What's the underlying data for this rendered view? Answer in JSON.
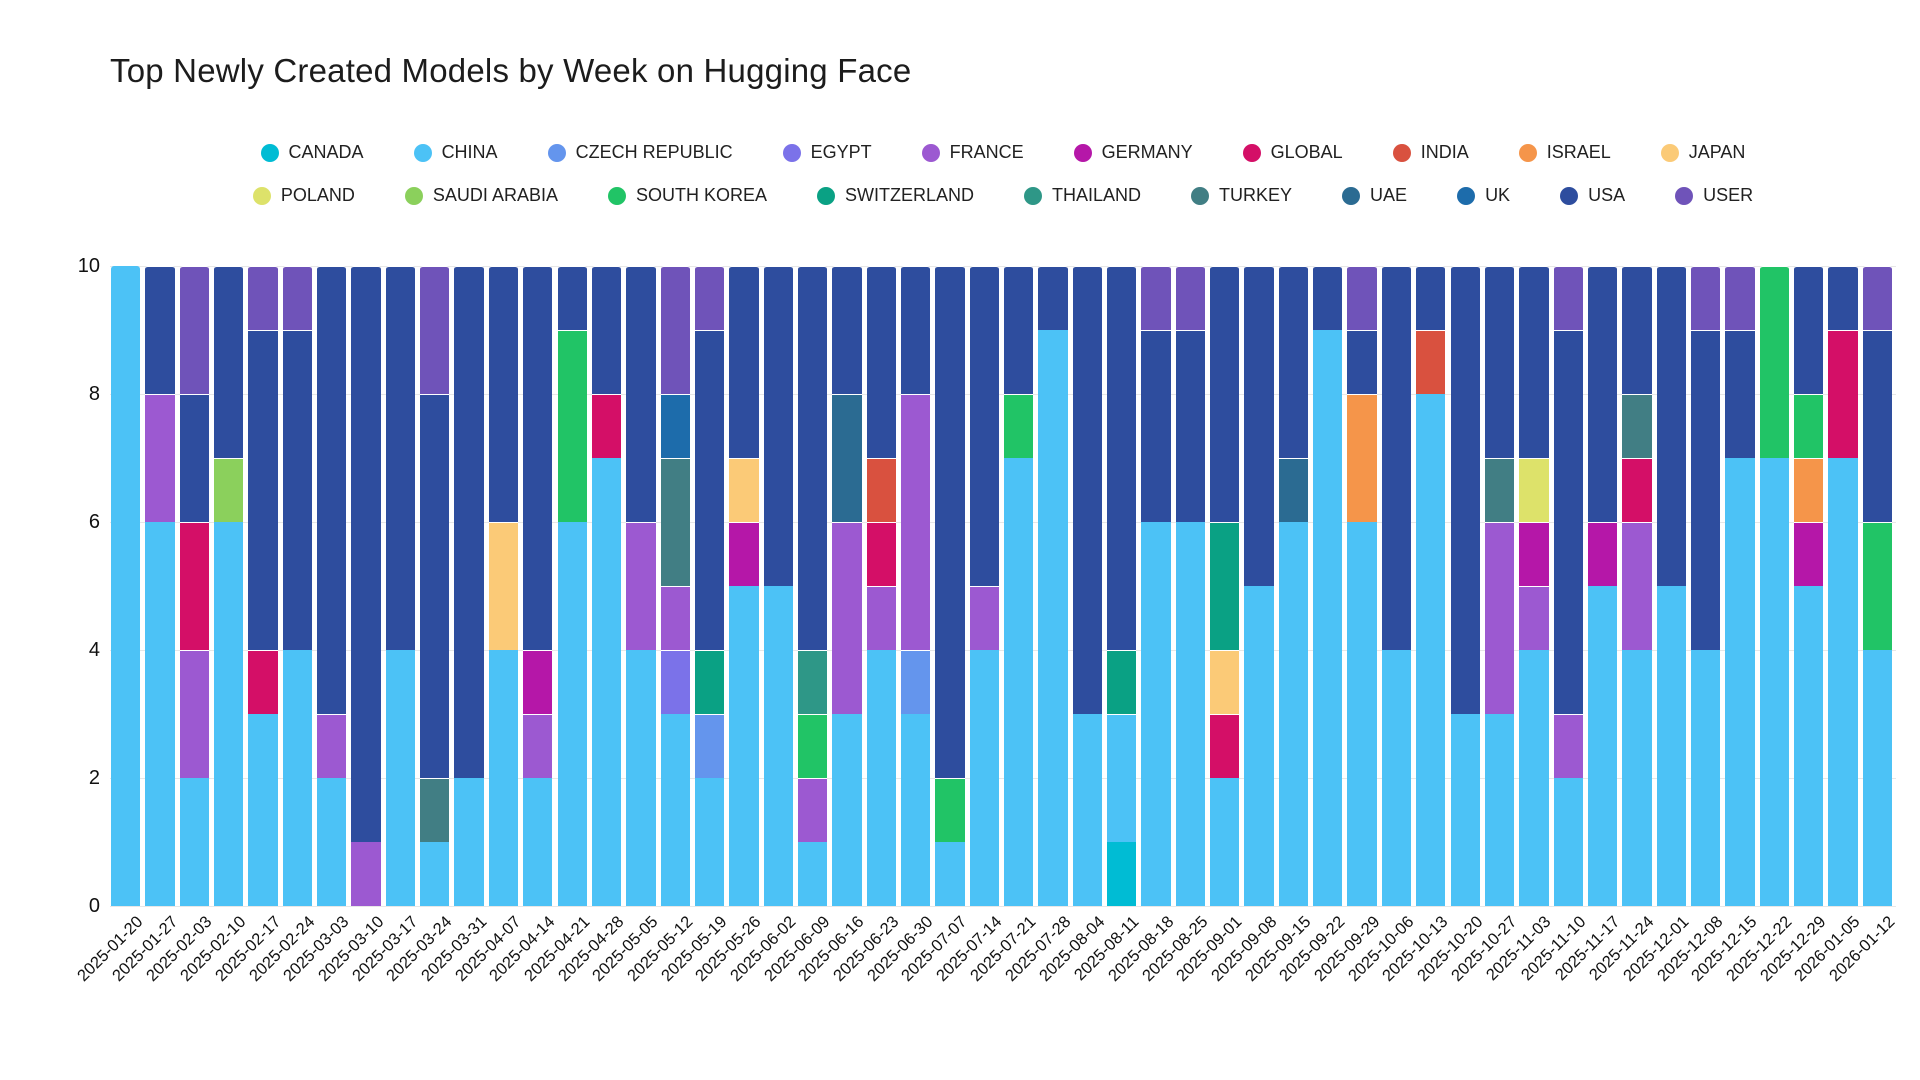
{
  "title": "Top Newly Created Models by Week on Hugging Face",
  "y_axis": {
    "ticks": [
      0,
      2,
      4,
      6,
      8,
      10
    ],
    "max": 10
  },
  "legend": {
    "row1": [
      "CANADA",
      "CHINA",
      "CZECH REPUBLIC",
      "EGYPT",
      "FRANCE",
      "GERMANY",
      "GLOBAL",
      "INDIA",
      "ISRAEL",
      "JAPAN"
    ],
    "row2": [
      "POLAND",
      "SAUDI ARABIA",
      "SOUTH KOREA",
      "SWITZERLAND",
      "THAILAND",
      "TURKEY",
      "UAE",
      "UK",
      "USA",
      "USER"
    ]
  },
  "colors": {
    "CANADA": "#00bcd4",
    "CHINA": "#4cc2f6",
    "CZECH REPUBLIC": "#6495ed",
    "EGYPT": "#7b72e9",
    "FRANCE": "#9c59d1",
    "GERMANY": "#b517a8",
    "GLOBAL": "#d40f67",
    "INDIA": "#d9513f",
    "ISRAEL": "#f5954a",
    "JAPAN": "#fbca77",
    "POLAND": "#dde26a",
    "SAUDI ARABIA": "#8bd05c",
    "SOUTH KOREA": "#21c466",
    "SWITZERLAND": "#0aa184",
    "THAILAND": "#2e9787",
    "TURKEY": "#417e84",
    "UAE": "#2b6b92",
    "UK": "#1d6cab",
    "USA": "#2e4d9e",
    "USER": "#6f53b9"
  },
  "chart_data": {
    "type": "bar",
    "subtype": "stacked-vertical",
    "title": "Top Newly Created Models by Week on Hugging Face",
    "xlabel": "",
    "ylabel": "",
    "ylim": [
      0,
      10
    ],
    "grid": "horizontal-faint",
    "legend_position": "top-center-two-rows",
    "stack_order_bottom_to_top": "alphabetical",
    "categories": [
      "2025-01-20",
      "2025-01-27",
      "2025-02-03",
      "2025-02-10",
      "2025-02-17",
      "2025-02-24",
      "2025-03-03",
      "2025-03-10",
      "2025-03-17",
      "2025-03-24",
      "2025-03-31",
      "2025-04-07",
      "2025-04-14",
      "2025-04-21",
      "2025-04-28",
      "2025-05-05",
      "2025-05-12",
      "2025-05-19",
      "2025-05-26",
      "2025-06-02",
      "2025-06-09",
      "2025-06-16",
      "2025-06-23",
      "2025-06-30",
      "2025-07-07",
      "2025-07-14",
      "2025-07-21",
      "2025-07-28",
      "2025-08-04",
      "2025-08-11",
      "2025-08-18",
      "2025-08-25",
      "2025-09-01",
      "2025-09-08",
      "2025-09-15",
      "2025-09-22",
      "2025-09-29",
      "2025-10-06",
      "2025-10-13",
      "2025-10-20",
      "2025-10-27",
      "2025-11-03",
      "2025-11-10",
      "2025-11-17",
      "2025-11-24",
      "2025-12-01",
      "2025-12-08",
      "2025-12-15",
      "2025-12-22",
      "2025-12-29",
      "2026-01-05",
      "2026-01-12"
    ],
    "bars": [
      {
        "week": "2025-01-20",
        "segments": [
          [
            "CHINA",
            10
          ]
        ]
      },
      {
        "week": "2025-01-27",
        "segments": [
          [
            "CHINA",
            6
          ],
          [
            "FRANCE",
            2
          ],
          [
            "USA",
            2
          ]
        ]
      },
      {
        "week": "2025-02-03",
        "segments": [
          [
            "CHINA",
            2
          ],
          [
            "FRANCE",
            2
          ],
          [
            "GLOBAL",
            2
          ],
          [
            "USA",
            2
          ],
          [
            "USER",
            2
          ]
        ]
      },
      {
        "week": "2025-02-10",
        "segments": [
          [
            "CHINA",
            6
          ],
          [
            "SAUDI ARABIA",
            1
          ],
          [
            "USA",
            3
          ]
        ]
      },
      {
        "week": "2025-02-17",
        "segments": [
          [
            "CHINA",
            3
          ],
          [
            "GLOBAL",
            1
          ],
          [
            "USA",
            5
          ],
          [
            "USER",
            1
          ]
        ]
      },
      {
        "week": "2025-02-24",
        "segments": [
          [
            "CHINA",
            4
          ],
          [
            "USA",
            5
          ],
          [
            "USER",
            1
          ]
        ]
      },
      {
        "week": "2025-03-03",
        "segments": [
          [
            "CHINA",
            2
          ],
          [
            "FRANCE",
            1
          ],
          [
            "USA",
            7
          ]
        ]
      },
      {
        "week": "2025-03-10",
        "segments": [
          [
            "FRANCE",
            1
          ],
          [
            "USA",
            9
          ]
        ]
      },
      {
        "week": "2025-03-17",
        "segments": [
          [
            "CHINA",
            4
          ],
          [
            "USA",
            6
          ]
        ]
      },
      {
        "week": "2025-03-24",
        "segments": [
          [
            "CHINA",
            1
          ],
          [
            "TURKEY",
            1
          ],
          [
            "USA",
            6
          ],
          [
            "USER",
            2
          ]
        ]
      },
      {
        "week": "2025-03-31",
        "segments": [
          [
            "CHINA",
            2
          ],
          [
            "USA",
            8
          ]
        ]
      },
      {
        "week": "2025-04-07",
        "segments": [
          [
            "CHINA",
            4
          ],
          [
            "JAPAN",
            2
          ],
          [
            "USA",
            4
          ]
        ]
      },
      {
        "week": "2025-04-14",
        "segments": [
          [
            "CHINA",
            2
          ],
          [
            "FRANCE",
            1
          ],
          [
            "GERMANY",
            1
          ],
          [
            "USA",
            6
          ]
        ]
      },
      {
        "week": "2025-04-21",
        "segments": [
          [
            "CHINA",
            6
          ],
          [
            "SOUTH KOREA",
            3
          ],
          [
            "USA",
            1
          ]
        ]
      },
      {
        "week": "2025-04-28",
        "segments": [
          [
            "CHINA",
            7
          ],
          [
            "GLOBAL",
            1
          ],
          [
            "USA",
            2
          ]
        ]
      },
      {
        "week": "2025-05-05",
        "segments": [
          [
            "CHINA",
            4
          ],
          [
            "FRANCE",
            2
          ],
          [
            "USA",
            4
          ]
        ]
      },
      {
        "week": "2025-05-12",
        "segments": [
          [
            "CHINA",
            3
          ],
          [
            "EGYPT",
            1
          ],
          [
            "FRANCE",
            1
          ],
          [
            "TURKEY",
            2
          ],
          [
            "UK",
            1
          ],
          [
            "USER",
            2
          ]
        ]
      },
      {
        "week": "2025-05-19",
        "segments": [
          [
            "CHINA",
            2
          ],
          [
            "CZECH REPUBLIC",
            1
          ],
          [
            "SWITZERLAND",
            1
          ],
          [
            "USA",
            5
          ],
          [
            "USER",
            1
          ]
        ]
      },
      {
        "week": "2025-05-26",
        "segments": [
          [
            "CHINA",
            5
          ],
          [
            "GERMANY",
            1
          ],
          [
            "JAPAN",
            1
          ],
          [
            "USA",
            3
          ]
        ]
      },
      {
        "week": "2025-06-02",
        "segments": [
          [
            "CHINA",
            5
          ],
          [
            "USA",
            5
          ]
        ]
      },
      {
        "week": "2025-06-09",
        "segments": [
          [
            "CHINA",
            1
          ],
          [
            "FRANCE",
            1
          ],
          [
            "SOUTH KOREA",
            1
          ],
          [
            "THAILAND",
            1
          ],
          [
            "USA",
            6
          ]
        ]
      },
      {
        "week": "2025-06-16",
        "segments": [
          [
            "CHINA",
            3
          ],
          [
            "FRANCE",
            3
          ],
          [
            "UAE",
            2
          ],
          [
            "USA",
            2
          ]
        ]
      },
      {
        "week": "2025-06-23",
        "segments": [
          [
            "CHINA",
            4
          ],
          [
            "FRANCE",
            1
          ],
          [
            "GLOBAL",
            1
          ],
          [
            "INDIA",
            1
          ],
          [
            "USA",
            3
          ]
        ]
      },
      {
        "week": "2025-06-30",
        "segments": [
          [
            "CHINA",
            3
          ],
          [
            "CZECH REPUBLIC",
            1
          ],
          [
            "FRANCE",
            4
          ],
          [
            "USA",
            2
          ]
        ]
      },
      {
        "week": "2025-07-07",
        "segments": [
          [
            "CHINA",
            1
          ],
          [
            "SOUTH KOREA",
            1
          ],
          [
            "USA",
            8
          ]
        ]
      },
      {
        "week": "2025-07-14",
        "segments": [
          [
            "CHINA",
            4
          ],
          [
            "FRANCE",
            1
          ],
          [
            "USA",
            5
          ]
        ]
      },
      {
        "week": "2025-07-21",
        "segments": [
          [
            "CHINA",
            7
          ],
          [
            "SOUTH KOREA",
            1
          ],
          [
            "USA",
            2
          ]
        ]
      },
      {
        "week": "2025-07-28",
        "segments": [
          [
            "CHINA",
            9
          ],
          [
            "USA",
            1
          ]
        ]
      },
      {
        "week": "2025-08-04",
        "segments": [
          [
            "CHINA",
            3
          ],
          [
            "USA",
            7
          ]
        ]
      },
      {
        "week": "2025-08-11",
        "segments": [
          [
            "CANADA",
            1
          ],
          [
            "CHINA",
            2
          ],
          [
            "SWITZERLAND",
            1
          ],
          [
            "USA",
            6
          ]
        ]
      },
      {
        "week": "2025-08-18",
        "segments": [
          [
            "CHINA",
            6
          ],
          [
            "USA",
            3
          ],
          [
            "USER",
            1
          ]
        ]
      },
      {
        "week": "2025-08-25",
        "segments": [
          [
            "CHINA",
            6
          ],
          [
            "USA",
            3
          ],
          [
            "USER",
            1
          ]
        ]
      },
      {
        "week": "2025-09-01",
        "segments": [
          [
            "CHINA",
            2
          ],
          [
            "GLOBAL",
            1
          ],
          [
            "JAPAN",
            1
          ],
          [
            "SWITZERLAND",
            2
          ],
          [
            "USA",
            4
          ]
        ]
      },
      {
        "week": "2025-09-08",
        "segments": [
          [
            "CHINA",
            5
          ],
          [
            "USA",
            5
          ]
        ]
      },
      {
        "week": "2025-09-15",
        "segments": [
          [
            "CHINA",
            6
          ],
          [
            "UAE",
            1
          ],
          [
            "USA",
            3
          ]
        ]
      },
      {
        "week": "2025-09-22",
        "segments": [
          [
            "CHINA",
            9
          ],
          [
            "USA",
            1
          ]
        ]
      },
      {
        "week": "2025-09-29",
        "segments": [
          [
            "CHINA",
            6
          ],
          [
            "ISRAEL",
            2
          ],
          [
            "USA",
            1
          ],
          [
            "USER",
            1
          ]
        ]
      },
      {
        "week": "2025-10-06",
        "segments": [
          [
            "CHINA",
            4
          ],
          [
            "USA",
            6
          ]
        ]
      },
      {
        "week": "2025-10-13",
        "segments": [
          [
            "CHINA",
            8
          ],
          [
            "INDIA",
            1
          ],
          [
            "USA",
            1
          ]
        ]
      },
      {
        "week": "2025-10-20",
        "segments": [
          [
            "CHINA",
            3
          ],
          [
            "USA",
            7
          ]
        ]
      },
      {
        "week": "2025-10-27",
        "segments": [
          [
            "CHINA",
            3
          ],
          [
            "FRANCE",
            3
          ],
          [
            "TURKEY",
            1
          ],
          [
            "USA",
            3
          ]
        ]
      },
      {
        "week": "2025-11-03",
        "segments": [
          [
            "CHINA",
            4
          ],
          [
            "FRANCE",
            1
          ],
          [
            "GERMANY",
            1
          ],
          [
            "POLAND",
            1
          ],
          [
            "USA",
            3
          ]
        ]
      },
      {
        "week": "2025-11-10",
        "segments": [
          [
            "CHINA",
            2
          ],
          [
            "FRANCE",
            1
          ],
          [
            "USA",
            6
          ],
          [
            "USER",
            1
          ]
        ]
      },
      {
        "week": "2025-11-17",
        "segments": [
          [
            "CHINA",
            5
          ],
          [
            "GERMANY",
            1
          ],
          [
            "USA",
            4
          ]
        ]
      },
      {
        "week": "2025-11-24",
        "segments": [
          [
            "CHINA",
            4
          ],
          [
            "FRANCE",
            2
          ],
          [
            "GLOBAL",
            1
          ],
          [
            "TURKEY",
            1
          ],
          [
            "USA",
            2
          ]
        ]
      },
      {
        "week": "2025-12-01",
        "segments": [
          [
            "CHINA",
            5
          ],
          [
            "USA",
            5
          ]
        ]
      },
      {
        "week": "2025-12-08",
        "segments": [
          [
            "CHINA",
            4
          ],
          [
            "USA",
            5
          ],
          [
            "USER",
            1
          ]
        ]
      },
      {
        "week": "2025-12-15",
        "segments": [
          [
            "CHINA",
            7
          ],
          [
            "USA",
            2
          ],
          [
            "USER",
            1
          ]
        ]
      },
      {
        "week": "2025-12-22",
        "segments": [
          [
            "CHINA",
            7
          ],
          [
            "SOUTH KOREA",
            3
          ]
        ]
      },
      {
        "week": "2025-12-29",
        "segments": [
          [
            "CHINA",
            5
          ],
          [
            "GERMANY",
            1
          ],
          [
            "ISRAEL",
            1
          ],
          [
            "SOUTH KOREA",
            1
          ],
          [
            "USA",
            2
          ]
        ]
      },
      {
        "week": "2026-01-05",
        "segments": [
          [
            "CHINA",
            7
          ],
          [
            "GLOBAL",
            2
          ],
          [
            "USA",
            1
          ]
        ]
      },
      {
        "week": "2026-01-12",
        "segments": [
          [
            "CHINA",
            4
          ],
          [
            "SOUTH KOREA",
            2
          ],
          [
            "USA",
            3
          ],
          [
            "USER",
            1
          ]
        ]
      }
    ]
  }
}
